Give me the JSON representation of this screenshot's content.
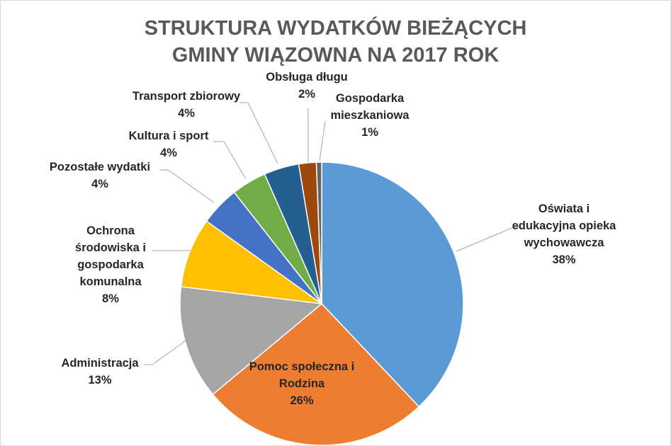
{
  "chart_data": {
    "type": "pie",
    "title": "STRUKTURA WYDATKÓW BIEŻĄCYCH\nGMINY WIĄZOWNA  NA 2017 ROK",
    "legend": "none",
    "data_labels": "category-and-percent",
    "slices": [
      {
        "label": "Oświata i\nedukacyjna opieka\nwychowawcza",
        "value": 38,
        "display": "38%",
        "color": "#5B9BD5"
      },
      {
        "label": "Pomoc społeczna i\nRodzina",
        "value": 26,
        "display": "26%",
        "color": "#ED7D31"
      },
      {
        "label": "Administracja",
        "value": 13,
        "display": "13%",
        "color": "#A5A5A5"
      },
      {
        "label": "Ochrona\nśrodowiska i\ngospodarka\nkomunalna",
        "value": 8,
        "display": "8%",
        "color": "#FFC000"
      },
      {
        "label": "Pozostałe wydatki",
        "value": 4.5,
        "display": "4%",
        "color": "#4472C4"
      },
      {
        "label": "Kultura i sport",
        "value": 4,
        "display": "4%",
        "color": "#70AD47"
      },
      {
        "label": "Transport zbiorowy",
        "value": 4,
        "display": "4%",
        "color": "#255E91"
      },
      {
        "label": "Obsługa długu",
        "value": 2,
        "display": "2%",
        "color": "#9E480E"
      },
      {
        "label": "Gospodarka\nmieszkaniowa",
        "value": 0.6,
        "display": "1%",
        "color": "#636363"
      }
    ]
  }
}
